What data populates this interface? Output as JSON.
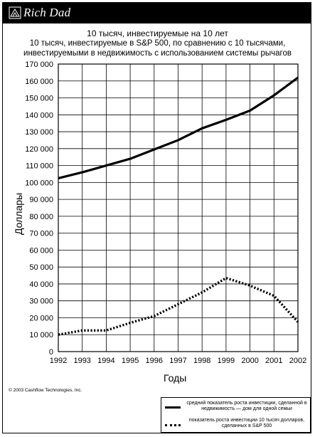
{
  "brand": {
    "name": "Rich Dad"
  },
  "copyright": "© 2003 Cashflow Technologies, Inc.",
  "chart_data": {
    "type": "line",
    "title_lines": [
      "10 тысяч, инвестируемые на 10 лет",
      "10 тысяч, инвестируемые в S&P 500, по сравнению с 10 тысячами,",
      "инвестируемыми в недвижимость с использованием системы рычагов"
    ],
    "xlabel": "Годы",
    "ylabel": "Доллары",
    "x": [
      1992,
      1993,
      1994,
      1995,
      1996,
      1997,
      1998,
      1999,
      2000,
      2001,
      2002
    ],
    "x_tick_labels": [
      "1992",
      "1993",
      "1994",
      "1995",
      "1996",
      "1997",
      "1998",
      "1999",
      "2000",
      "2001",
      "2002"
    ],
    "ylim": [
      0,
      170000
    ],
    "y_ticks": [
      0,
      10000,
      20000,
      30000,
      40000,
      50000,
      60000,
      70000,
      80000,
      90000,
      100000,
      110000,
      120000,
      130000,
      140000,
      150000,
      160000,
      170000
    ],
    "y_tick_labels": [
      "0",
      "10 000",
      "20 000",
      "30 000",
      "40 000",
      "50 000",
      "60 000",
      "70 000",
      "80 000",
      "90 000",
      "100 000",
      "110 000",
      "120 000",
      "130 000",
      "140 000",
      "150 000",
      "160 000",
      "170 000"
    ],
    "grid": true,
    "legend_position": "bottom-right",
    "series": [
      {
        "name": "средний показатель роста инвестиции, сделанной в недвижимость — дом для одной семьи",
        "style": "solid",
        "values": [
          102500,
          106000,
          110000,
          114000,
          119500,
          125000,
          132000,
          137000,
          142500,
          151500,
          162000
        ]
      },
      {
        "name": "показатель роста инвестиции 10 тысяч долларов, сделанных в S&P 500",
        "style": "dotted",
        "values": [
          10000,
          12500,
          12500,
          17000,
          21000,
          28000,
          35000,
          43500,
          39000,
          33000,
          17500
        ]
      }
    ],
    "colors": {
      "line": "#000000",
      "grid": "#000000"
    }
  }
}
